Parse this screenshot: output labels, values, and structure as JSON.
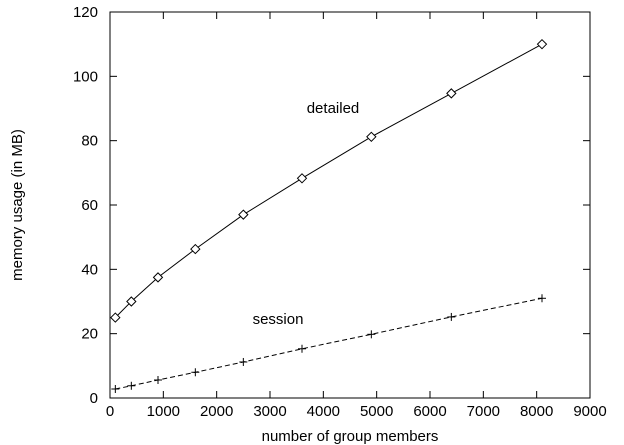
{
  "chart_data": {
    "type": "line",
    "xlabel": "number of group members",
    "ylabel": "memory usage (in MB)",
    "xlim": [
      0,
      9000
    ],
    "ylim": [
      0,
      120
    ],
    "xticks": [
      "0",
      "1000",
      "2000",
      "3000",
      "4000",
      "5000",
      "6000",
      "7000",
      "8000",
      "9000"
    ],
    "yticks": [
      "0",
      "20",
      "40",
      "60",
      "80",
      "100",
      "120"
    ],
    "grid": false,
    "series": [
      {
        "name": "detailed",
        "line_style": "solid",
        "marker": "diamond",
        "x": [
          100,
          400,
          900,
          1600,
          2500,
          3600,
          4900,
          6400,
          8100
        ],
        "y": [
          25,
          30,
          37.5,
          46.3,
          57,
          68.3,
          81.2,
          94.7,
          110
        ]
      },
      {
        "name": "session",
        "line_style": "dashed",
        "marker": "plus",
        "x": [
          100,
          400,
          900,
          1600,
          2500,
          3600,
          4900,
          6400,
          8100
        ],
        "y": [
          2.8,
          3.8,
          5.6,
          8,
          11.2,
          15.3,
          19.8,
          25.2,
          31
        ]
      }
    ]
  }
}
